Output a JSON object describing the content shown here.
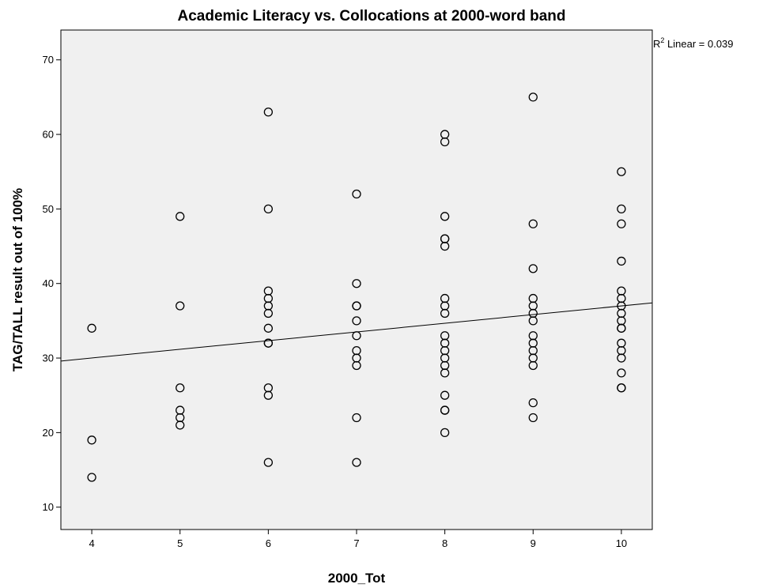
{
  "chart_data": {
    "type": "scatter",
    "title": "Academic Literacy vs. Collocations at 2000-word band",
    "xlabel": "2000_Tot",
    "ylabel": "TAG/TALL result out of 100%",
    "xlim": [
      3.65,
      10.35
    ],
    "ylim": [
      7,
      74
    ],
    "x_ticks": [
      4,
      5,
      6,
      7,
      8,
      9,
      10
    ],
    "y_ticks": [
      10,
      20,
      30,
      40,
      50,
      60,
      70
    ],
    "grid": false,
    "plot_background": "#f0f0f0",
    "marker_color": "#000000",
    "fit_line": {
      "x": [
        3.65,
        10.35
      ],
      "y": [
        29.6,
        37.4
      ]
    },
    "annotation": {
      "r_label": "R",
      "r_sup": "2",
      "text": " Linear = 0.039"
    },
    "points": [
      [
        4,
        34
      ],
      [
        4,
        19
      ],
      [
        4,
        14
      ],
      [
        5,
        49
      ],
      [
        5,
        37
      ],
      [
        5,
        26
      ],
      [
        5,
        23
      ],
      [
        5,
        22
      ],
      [
        5,
        21
      ],
      [
        6,
        63
      ],
      [
        6,
        50
      ],
      [
        6,
        39
      ],
      [
        6,
        38
      ],
      [
        6,
        37
      ],
      [
        6,
        36
      ],
      [
        6,
        34
      ],
      [
        6,
        32
      ],
      [
        6,
        32
      ],
      [
        6,
        26
      ],
      [
        6,
        25
      ],
      [
        6,
        16
      ],
      [
        7,
        52
      ],
      [
        7,
        40
      ],
      [
        7,
        37
      ],
      [
        7,
        37
      ],
      [
        7,
        35
      ],
      [
        7,
        33
      ],
      [
        7,
        31
      ],
      [
        7,
        30
      ],
      [
        7,
        29
      ],
      [
        7,
        22
      ],
      [
        7,
        16
      ],
      [
        8,
        60
      ],
      [
        8,
        59
      ],
      [
        8,
        49
      ],
      [
        8,
        46
      ],
      [
        8,
        46
      ],
      [
        8,
        45
      ],
      [
        8,
        38
      ],
      [
        8,
        37
      ],
      [
        8,
        36
      ],
      [
        8,
        33
      ],
      [
        8,
        32
      ],
      [
        8,
        31
      ],
      [
        8,
        30
      ],
      [
        8,
        29
      ],
      [
        8,
        28
      ],
      [
        8,
        25
      ],
      [
        8,
        23
      ],
      [
        8,
        23
      ],
      [
        8,
        20
      ],
      [
        9,
        65
      ],
      [
        9,
        48
      ],
      [
        9,
        42
      ],
      [
        9,
        38
      ],
      [
        9,
        37
      ],
      [
        9,
        36
      ],
      [
        9,
        35
      ],
      [
        9,
        33
      ],
      [
        9,
        32
      ],
      [
        9,
        31
      ],
      [
        9,
        30
      ],
      [
        9,
        29
      ],
      [
        9,
        24
      ],
      [
        9,
        22
      ],
      [
        10,
        55
      ],
      [
        10,
        50
      ],
      [
        10,
        48
      ],
      [
        10,
        43
      ],
      [
        10,
        39
      ],
      [
        10,
        38
      ],
      [
        10,
        37
      ],
      [
        10,
        36
      ],
      [
        10,
        35
      ],
      [
        10,
        34
      ],
      [
        10,
        34
      ],
      [
        10,
        32
      ],
      [
        10,
        31
      ],
      [
        10,
        30
      ],
      [
        10,
        28
      ],
      [
        10,
        26
      ],
      [
        10,
        26
      ]
    ]
  }
}
